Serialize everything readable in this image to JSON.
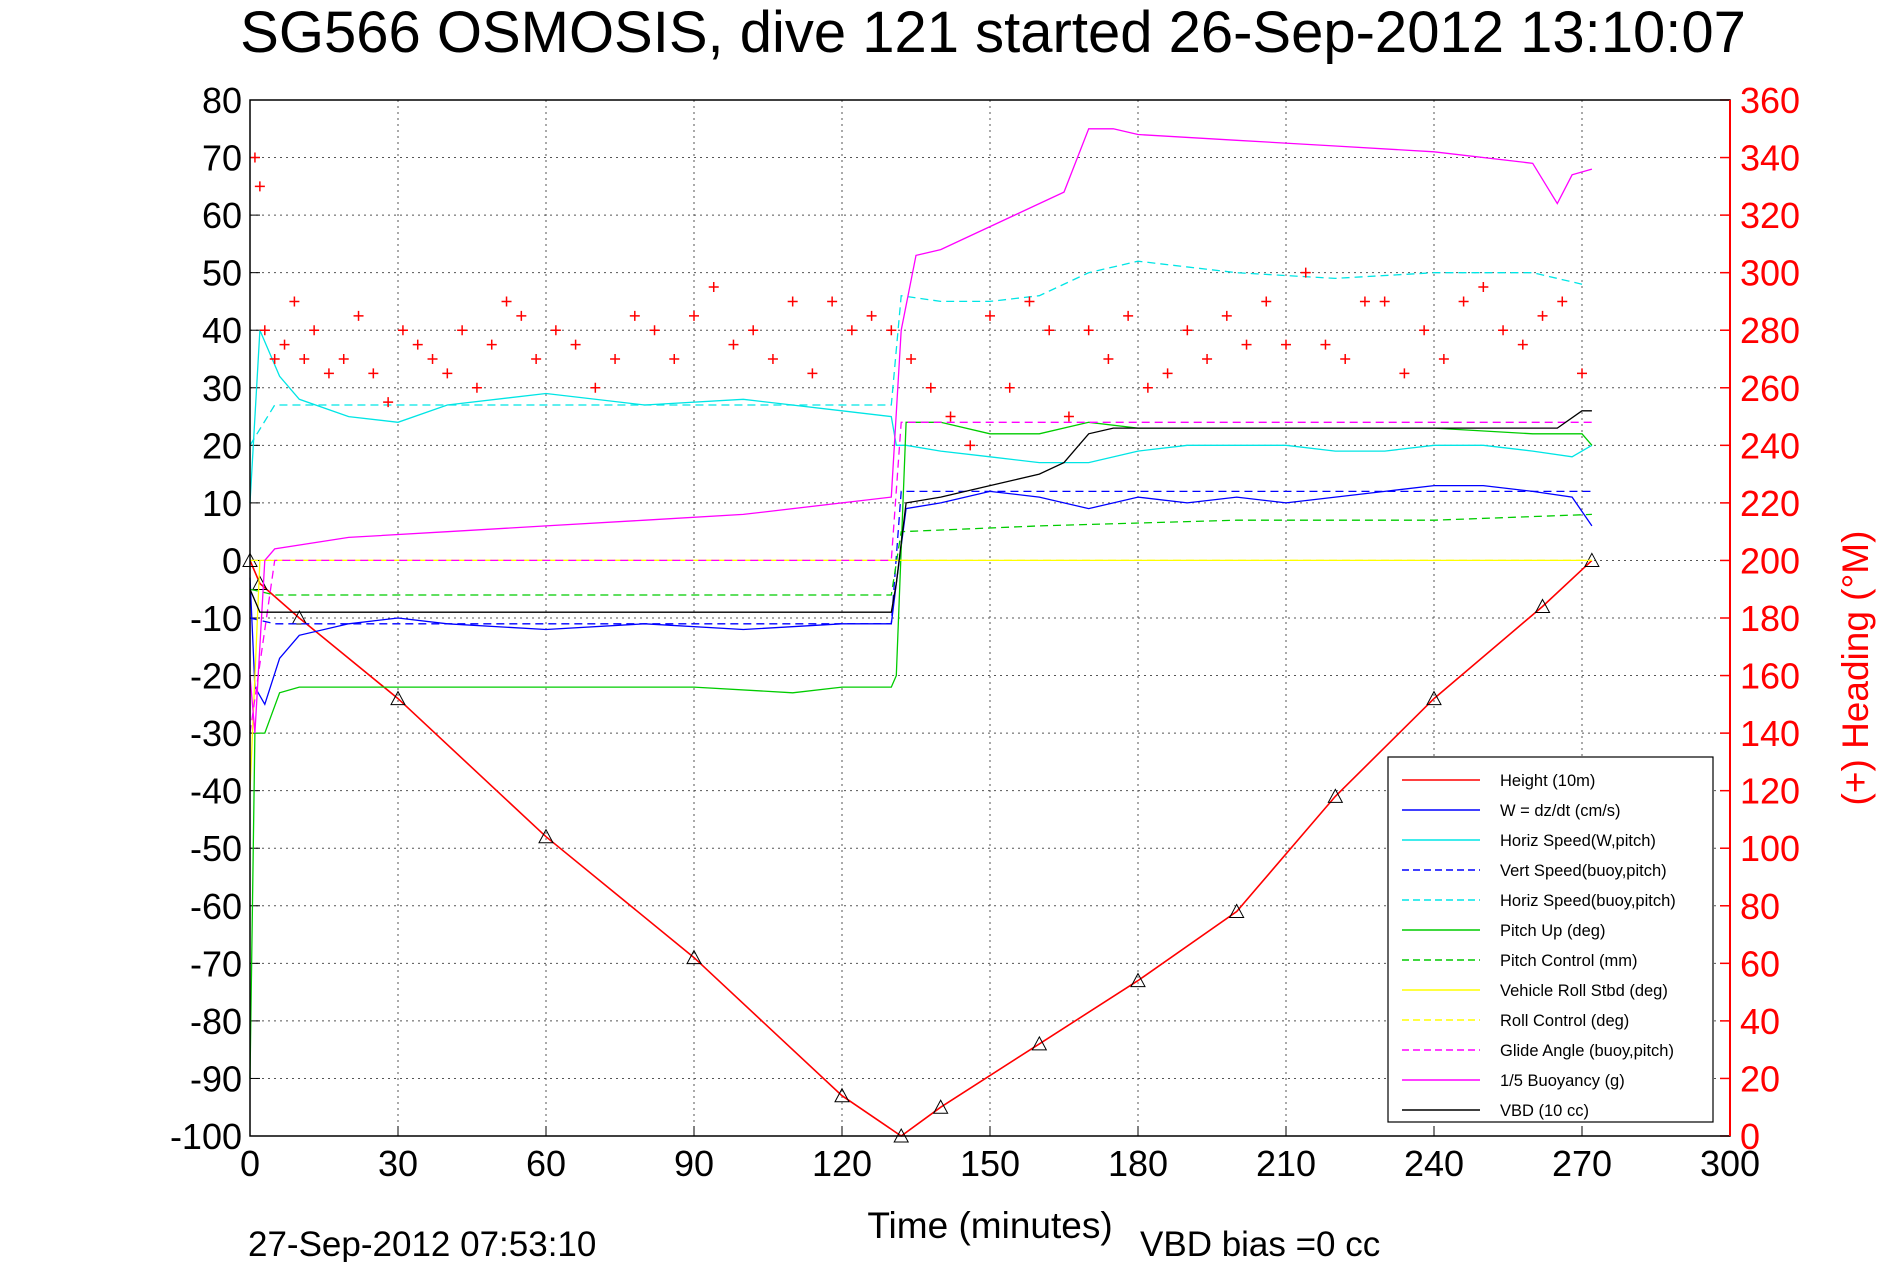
{
  "chart_data": {
    "type": "line",
    "title": "SG566 OSMOSIS, dive 121 started 26-Sep-2012 13:10:07",
    "xlabel": "Time (minutes)",
    "ylabel_right": "(+) Heading (°M)",
    "footer_left": "27-Sep-2012 07:53:10",
    "footer_right": "VBD bias =0 cc",
    "xlim": [
      0,
      300
    ],
    "ylim": [
      -100,
      80
    ],
    "ylim_right": [
      0,
      360
    ],
    "x_ticks": [
      "0",
      "30",
      "60",
      "90",
      "120",
      "150",
      "180",
      "210",
      "240",
      "270",
      "300"
    ],
    "y_ticks": [
      "80",
      "70",
      "60",
      "50",
      "40",
      "30",
      "20",
      "10",
      "0",
      "-10",
      "-20",
      "-30",
      "-40",
      "-50",
      "-60",
      "-70",
      "-80",
      "-90",
      "-100"
    ],
    "y_right_ticks": [
      "360",
      "340",
      "320",
      "300",
      "280",
      "260",
      "240",
      "220",
      "200",
      "180",
      "160",
      "140",
      "120",
      "100",
      "80",
      "60",
      "40",
      "20",
      "0"
    ],
    "grid": true,
    "legend_position": "bottom-right",
    "colors": {
      "height": "#ff0000",
      "w": "#0000ff",
      "horiz_w": "#00e5e5",
      "vert_buoy": "#0000ff",
      "horiz_buoy": "#00e5e5",
      "pitch": "#00cc00",
      "pitch_ctrl": "#00cc00",
      "roll": "#ffff00",
      "roll_ctrl": "#ffff00",
      "glide": "#ff00ff",
      "buoyancy": "#ff00ff",
      "vbd": "#000000",
      "heading": "#ff0000"
    },
    "series": [
      {
        "key": "height",
        "name": "Height (10m)",
        "style": "solid",
        "color": "#ff0000",
        "x": [
          0,
          2,
          10,
          30,
          60,
          90,
          120,
          132,
          140,
          160,
          180,
          200,
          220,
          240,
          262,
          272
        ],
        "y": [
          0,
          -4,
          -10,
          -24,
          -48,
          -69,
          -93,
          -100,
          -95,
          -84,
          -73,
          -61,
          -41,
          -24,
          -8,
          0
        ]
      },
      {
        "key": "w",
        "name": "W = dz/dt (cm/s)",
        "style": "solid",
        "color": "#0000ff",
        "x": [
          0,
          1,
          3,
          6,
          10,
          20,
          30,
          40,
          60,
          80,
          100,
          120,
          130,
          131,
          133,
          140,
          150,
          160,
          170,
          180,
          190,
          200,
          210,
          220,
          230,
          240,
          250,
          260,
          268,
          272
        ],
        "y": [
          -3,
          -22,
          -25,
          -17,
          -13,
          -11,
          -10,
          -11,
          -12,
          -11,
          -12,
          -11,
          -11,
          -4,
          9,
          10,
          12,
          11,
          9,
          11,
          10,
          11,
          10,
          11,
          12,
          13,
          13,
          12,
          11,
          6
        ]
      },
      {
        "key": "horiz_w",
        "name": "Horiz Speed(W,pitch)",
        "style": "solid",
        "color": "#00e5e5",
        "x": [
          0,
          2,
          6,
          10,
          20,
          30,
          40,
          60,
          80,
          100,
          120,
          130,
          131,
          133,
          140,
          150,
          160,
          170,
          180,
          190,
          200,
          210,
          220,
          230,
          240,
          250,
          260,
          268,
          272
        ],
        "y": [
          10,
          40,
          32,
          28,
          25,
          24,
          27,
          29,
          27,
          28,
          26,
          25,
          20,
          20,
          19,
          18,
          17,
          17,
          19,
          20,
          20,
          20,
          19,
          19,
          20,
          20,
          19,
          18,
          20
        ]
      },
      {
        "key": "vert_buoy",
        "name": "Vert Speed(buoy,pitch)",
        "style": "dashed",
        "color": "#0000ff",
        "x": [
          0,
          5,
          130,
          132,
          272
        ],
        "y": [
          -10,
          -11,
          -11,
          12,
          12
        ]
      },
      {
        "key": "horiz_buoy",
        "name": "Horiz Speed(buoy,pitch)",
        "style": "dashed",
        "color": "#00e5e5",
        "x": [
          0,
          5,
          60,
          130,
          132,
          140,
          150,
          160,
          170,
          180,
          200,
          220,
          240,
          260,
          270
        ],
        "y": [
          20,
          27,
          27,
          27,
          46,
          45,
          45,
          46,
          50,
          52,
          50,
          49,
          50,
          50,
          48
        ]
      },
      {
        "key": "pitch",
        "name": "Pitch Up (deg)",
        "style": "solid",
        "color": "#00cc00",
        "x": [
          0,
          1,
          3,
          6,
          10,
          30,
          60,
          90,
          110,
          120,
          130,
          131,
          133,
          140,
          150,
          160,
          170,
          180,
          200,
          220,
          240,
          260,
          270,
          272
        ],
        "y": [
          -90,
          -30,
          -30,
          -23,
          -22,
          -22,
          -22,
          -22,
          -23,
          -22,
          -22,
          -20,
          24,
          24,
          22,
          22,
          24,
          23,
          23,
          23,
          23,
          22,
          22,
          20
        ]
      },
      {
        "key": "pitch_ctrl",
        "name": "Pitch Control (mm)",
        "style": "dashed",
        "color": "#00cc00",
        "x": [
          0,
          5,
          60,
          130,
          132,
          160,
          200,
          240,
          272
        ],
        "y": [
          -5,
          -6,
          -6,
          -6,
          5,
          6,
          7,
          7,
          8
        ]
      },
      {
        "key": "roll",
        "name": "Vehicle Roll Stbd (deg)",
        "style": "solid",
        "color": "#ffff00",
        "x": [
          0,
          2,
          10,
          130,
          132,
          272
        ],
        "y": [
          -40,
          0,
          0,
          0,
          0,
          0
        ]
      },
      {
        "key": "roll_ctrl",
        "name": "Roll Control (deg)",
        "style": "dashed",
        "color": "#ffff00",
        "x": [
          0,
          130,
          132,
          272
        ],
        "y": [
          0,
          0,
          0,
          0
        ]
      },
      {
        "key": "glide",
        "name": "Glide Angle (buoy,pitch)",
        "style": "dashed",
        "color": "#ff00ff",
        "x": [
          0,
          5,
          130,
          132,
          272
        ],
        "y": [
          -30,
          0,
          0,
          24,
          24
        ]
      },
      {
        "key": "buoyancy",
        "name": "1/5 Buoyancy (g)",
        "style": "solid",
        "color": "#ff00ff",
        "x": [
          0,
          1,
          3,
          5,
          20,
          40,
          60,
          80,
          100,
          120,
          130,
          132,
          135,
          140,
          145,
          150,
          155,
          160,
          165,
          170,
          175,
          180,
          200,
          220,
          240,
          260,
          265,
          268,
          272
        ],
        "y": [
          -20,
          -30,
          0,
          2,
          4,
          5,
          6,
          7,
          8,
          10,
          11,
          40,
          53,
          54,
          56,
          58,
          60,
          62,
          64,
          75,
          75,
          74,
          73,
          72,
          71,
          69,
          62,
          67,
          68
        ]
      },
      {
        "key": "vbd",
        "name": "VBD (10 cc)",
        "style": "solid",
        "color": "#000000",
        "x": [
          0,
          2,
          4,
          10,
          60,
          130,
          131,
          133,
          140,
          145,
          150,
          155,
          160,
          165,
          168,
          170,
          175,
          180,
          200,
          220,
          240,
          260,
          265,
          270,
          272
        ],
        "y": [
          -5,
          -9,
          -9,
          -9,
          -9,
          -9,
          -4,
          10,
          11,
          12,
          13,
          14,
          15,
          17,
          20,
          22,
          23,
          23,
          23,
          23,
          23,
          23,
          23,
          26,
          26
        ]
      },
      {
        "key": "heading",
        "name": "",
        "style": "plus",
        "color": "#ff0000",
        "x": [
          1,
          2,
          3,
          5,
          7,
          9,
          11,
          13,
          16,
          19,
          22,
          25,
          28,
          31,
          34,
          37,
          40,
          43,
          46,
          49,
          52,
          55,
          58,
          62,
          66,
          70,
          74,
          78,
          82,
          86,
          90,
          94,
          98,
          102,
          106,
          110,
          114,
          118,
          122,
          126,
          130,
          134,
          138,
          142,
          146,
          150,
          154,
          158,
          162,
          166,
          170,
          174,
          178,
          182,
          186,
          190,
          194,
          198,
          202,
          206,
          210,
          214,
          218,
          222,
          226,
          230,
          234,
          238,
          242,
          246,
          250,
          254,
          258,
          262,
          266,
          270
        ],
        "y": [
          340,
          330,
          280,
          270,
          275,
          290,
          270,
          280,
          265,
          270,
          285,
          265,
          255,
          280,
          275,
          270,
          265,
          280,
          260,
          275,
          290,
          285,
          270,
          280,
          275,
          260,
          270,
          285,
          280,
          270,
          285,
          295,
          275,
          280,
          270,
          290,
          265,
          290,
          280,
          285,
          280,
          270,
          260,
          250,
          240,
          285,
          260,
          290,
          280,
          250,
          280,
          270,
          285,
          260,
          265,
          280,
          270,
          285,
          275,
          290,
          275,
          300,
          275,
          270,
          290,
          290,
          265,
          280,
          270,
          290,
          295,
          280,
          275,
          285,
          290,
          265
        ]
      }
    ]
  }
}
